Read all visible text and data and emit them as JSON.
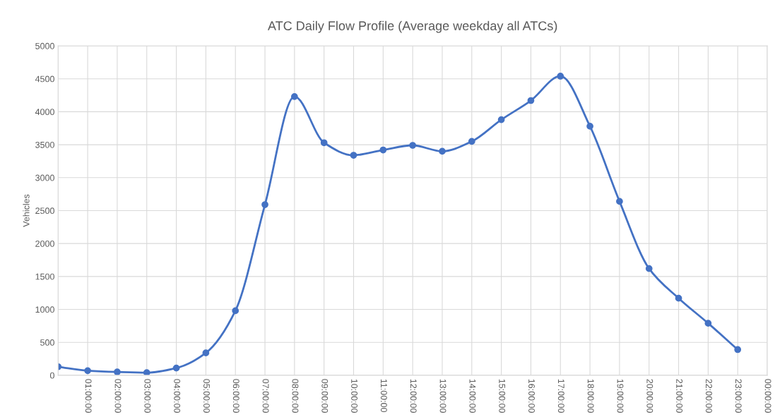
{
  "chart_data": {
    "type": "line",
    "title": "ATC Daily Flow Profile (Average weekday all ATCs)",
    "ylabel": "Vehicles",
    "categories": [
      null,
      "01:00:00",
      "02:00:00",
      "03:00:00",
      "04:00:00",
      "05:00:00",
      "06:00:00",
      "07:00:00",
      "08:00:00",
      "09:00:00",
      "10:00:00",
      "11:00:00",
      "12:00:00",
      "13:00:00",
      "14:00:00",
      "15:00:00",
      "16:00:00",
      "17:00:00",
      "18:00:00",
      "19:00:00",
      "20:00:00",
      "21:00:00",
      "22:00:00",
      "23:00:00",
      "00:00:00"
    ],
    "series": [
      {
        "color": "#4472c4",
        "values": [
          130,
          70,
          50,
          40,
          110,
          340,
          980,
          2590,
          4230,
          3530,
          3340,
          3420,
          3490,
          3400,
          3550,
          3880,
          4170,
          4540,
          3780,
          2640,
          1620,
          1170,
          790,
          390,
          null
        ]
      }
    ],
    "ylim": [
      0,
      5000
    ],
    "yticks": [
      0,
      500,
      1000,
      1500,
      2000,
      2500,
      3000,
      3500,
      4000,
      4500,
      5000
    ],
    "grid": true,
    "marker": "circle",
    "line_style": "solid"
  }
}
